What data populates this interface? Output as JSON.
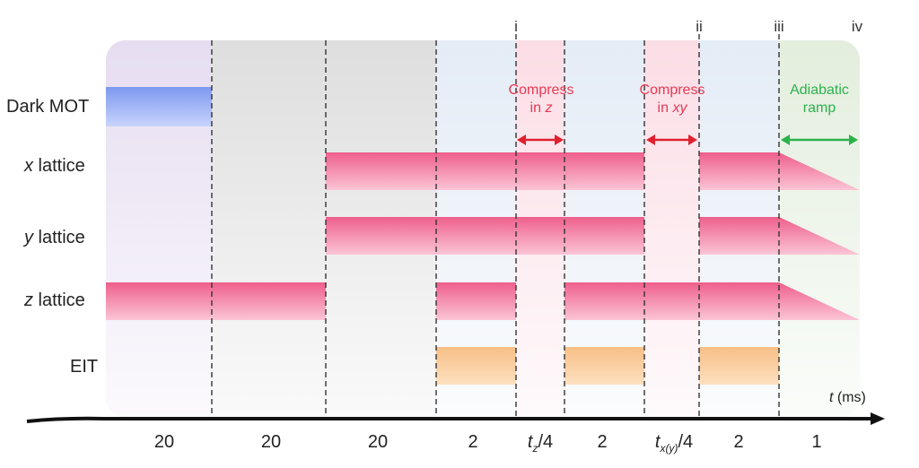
{
  "markers": [
    "i",
    "ii",
    "iii",
    "iv"
  ],
  "channels": [
    {
      "pre": "",
      "ital": "",
      "post": "Dark MOT"
    },
    {
      "pre": "",
      "ital": "x",
      "post": " lattice"
    },
    {
      "pre": "",
      "ital": "y",
      "post": " lattice"
    },
    {
      "pre": "",
      "ital": "z",
      "post": " lattice"
    },
    {
      "pre": "",
      "ital": "",
      "post": "EIT"
    }
  ],
  "annotations": {
    "compress_z": {
      "line1": "Compress",
      "line2_pre": "in ",
      "line2_ital": "z"
    },
    "compress_xy": {
      "line1": "Compress",
      "line2_pre": "in ",
      "line2_ital": "xy"
    },
    "adiabatic": {
      "line1": "Adiabatic",
      "line2": "ramp"
    }
  },
  "axis": {
    "label_ital": "t",
    "label_rest": " (ms)"
  },
  "durations": [
    {
      "pre": "20",
      "ital": "",
      "sub": "",
      "post": ""
    },
    {
      "pre": "20",
      "ital": "",
      "sub": "",
      "post": ""
    },
    {
      "pre": "20",
      "ital": "",
      "sub": "",
      "post": ""
    },
    {
      "pre": "2",
      "ital": "",
      "sub": "",
      "post": ""
    },
    {
      "pre": "",
      "ital": "t",
      "sub": "z",
      "post": "/4"
    },
    {
      "pre": "2",
      "ital": "",
      "sub": "",
      "post": ""
    },
    {
      "pre": "",
      "ital": "t",
      "sub": "x(y)",
      "post": "/4"
    },
    {
      "pre": "2",
      "ital": "",
      "sub": "",
      "post": ""
    },
    {
      "pre": "1",
      "ital": "",
      "sub": "",
      "post": ""
    }
  ],
  "colors": {
    "stage1_bg": "#e8e0f2",
    "stage2_bg": "#e0e0e0",
    "stage3_bg": "#e9eef5",
    "stage4_bg": "#e6f0e0",
    "compress_band": "#fde6ec",
    "dark_mot": "#8aa6f2",
    "lattice": "#f0729a",
    "eit": "#f7c48a",
    "red_arrow": "#e0202e",
    "green_arrow": "#2db14c"
  }
}
